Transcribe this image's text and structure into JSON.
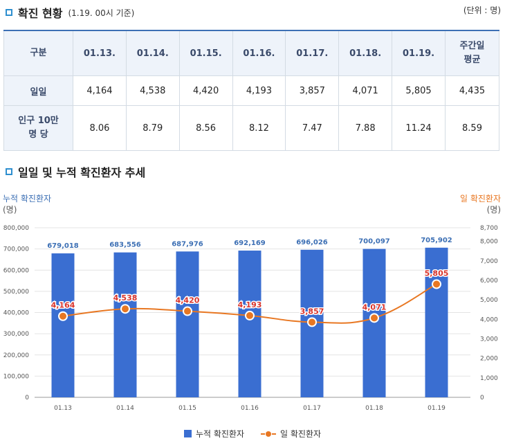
{
  "section1": {
    "title": "확진 현황",
    "subtitle": "(1.19. 00시 기준)",
    "unit": "(단위 : 명)"
  },
  "table": {
    "headers": [
      "구분",
      "01.13.",
      "01.14.",
      "01.15.",
      "01.16.",
      "01.17.",
      "01.18.",
      "01.19.",
      "주간일\n평균"
    ],
    "rows": [
      {
        "label": "일일",
        "values": [
          "4,164",
          "4,538",
          "4,420",
          "4,193",
          "3,857",
          "4,071",
          "5,805",
          "4,435"
        ]
      },
      {
        "label": "인구 10만\n명 당",
        "values": [
          "8.06",
          "8.79",
          "8.56",
          "8.12",
          "7.47",
          "7.88",
          "11.24",
          "8.59"
        ]
      }
    ]
  },
  "section2": {
    "title": "일일 및 누적 확진환자 추세"
  },
  "chart_data": {
    "type": "bar+line",
    "title": "일일 및 누적 확진환자 추세",
    "categories": [
      "01.13",
      "01.14",
      "01.15",
      "01.16",
      "01.17",
      "01.18",
      "01.19"
    ],
    "series": [
      {
        "name": "누적 확진환자",
        "type": "bar",
        "axis": "left",
        "color": "#3a6ed1",
        "values": [
          679018,
          683556,
          687976,
          692169,
          696026,
          700097,
          705902
        ],
        "labels": [
          "679,018",
          "683,556",
          "687,976",
          "692,169",
          "696,026",
          "700,097",
          "705,902"
        ]
      },
      {
        "name": "일 확진환자",
        "type": "line",
        "axis": "right",
        "color": "#e87722",
        "values": [
          4164,
          4538,
          4420,
          4193,
          3857,
          4071,
          5805
        ],
        "labels": [
          "4,164",
          "4,538",
          "4,420",
          "4,193",
          "3,857",
          "4,071",
          "5,805"
        ]
      }
    ],
    "left_axis": {
      "title": "누적 확진환자",
      "unit": "(명)",
      "range": [
        0,
        800000
      ],
      "ticks": [
        0,
        100000,
        200000,
        300000,
        400000,
        500000,
        600000,
        700000,
        800000
      ],
      "tick_labels": [
        "0",
        "100,000",
        "200,000",
        "300,000",
        "400,000",
        "500,000",
        "600,000",
        "700,000",
        "800,000"
      ]
    },
    "right_axis": {
      "title": "일 확진환자",
      "unit": "(명)",
      "range": [
        0,
        8700
      ],
      "ticks": [
        0,
        1000,
        2000,
        3000,
        4000,
        5000,
        6000,
        7000,
        8000,
        8700
      ],
      "tick_labels": [
        "0",
        "1,000",
        "2,000",
        "3,000",
        "4,000",
        "5,000",
        "6,000",
        "7,000",
        "8,000",
        "8,700"
      ]
    },
    "legend": [
      "누적 확진환자",
      "일 확진환자"
    ]
  }
}
